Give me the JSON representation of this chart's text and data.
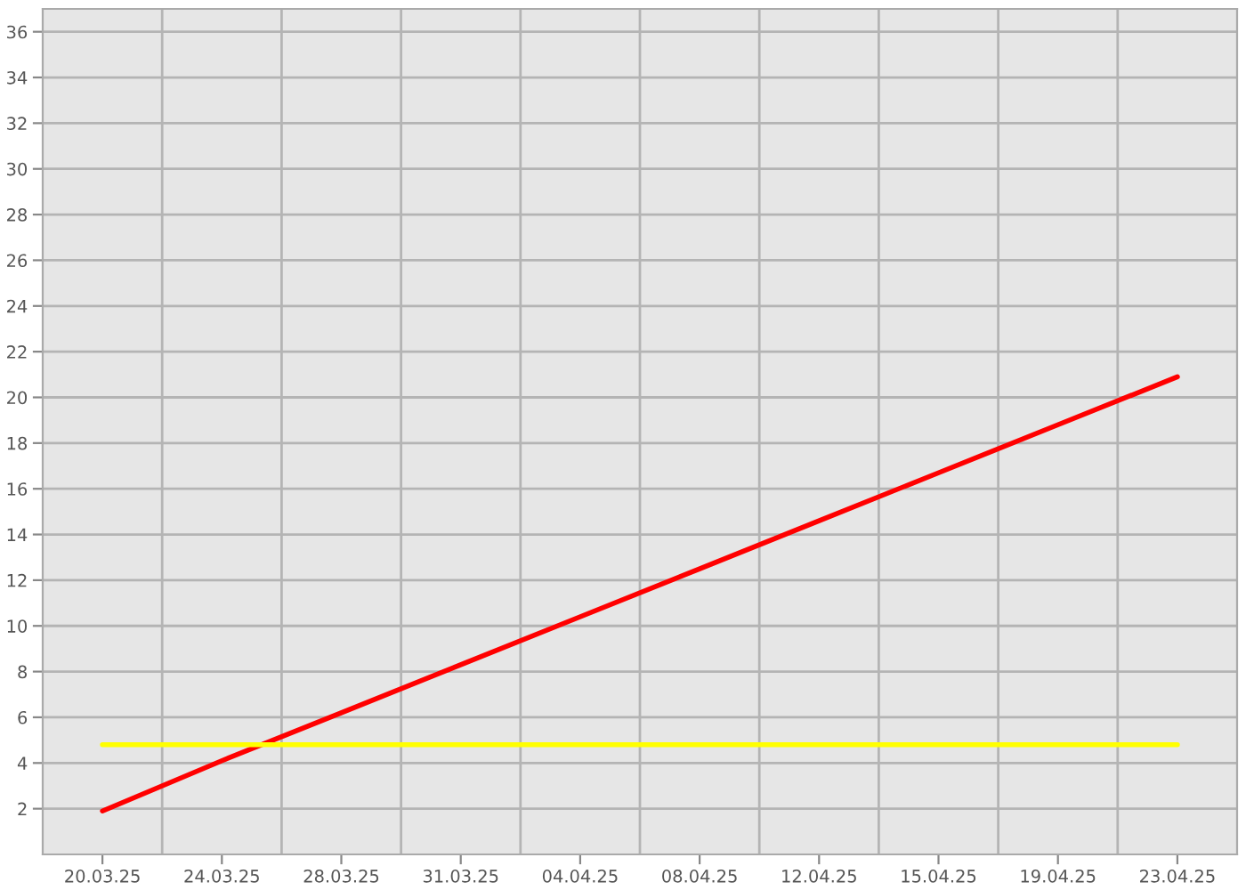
{
  "chart_data": {
    "type": "line",
    "categories": [
      "20.03.25",
      "24.03.25",
      "28.03.25",
      "31.03.25",
      "04.04.25",
      "08.04.25",
      "12.04.25",
      "15.04.25",
      "19.04.25",
      "23.04.25"
    ],
    "series": [
      {
        "color": "#ff0000",
        "values": [
          1.9,
          4.1,
          6.2,
          8.3,
          10.4,
          12.5,
          14.6,
          16.7,
          18.8,
          20.9
        ]
      },
      {
        "color": "#ffff00",
        "values": [
          4.8,
          4.8,
          4.8,
          4.8,
          4.8,
          4.8,
          4.8,
          4.8,
          4.8,
          4.8
        ]
      }
    ],
    "ylim": [
      0,
      37
    ],
    "yticks": [
      2,
      4,
      6,
      8,
      10,
      12,
      14,
      16,
      18,
      20,
      22,
      24,
      26,
      28,
      30,
      32,
      34,
      36
    ],
    "grid": true,
    "marker": "none",
    "line_style": "solid"
  }
}
